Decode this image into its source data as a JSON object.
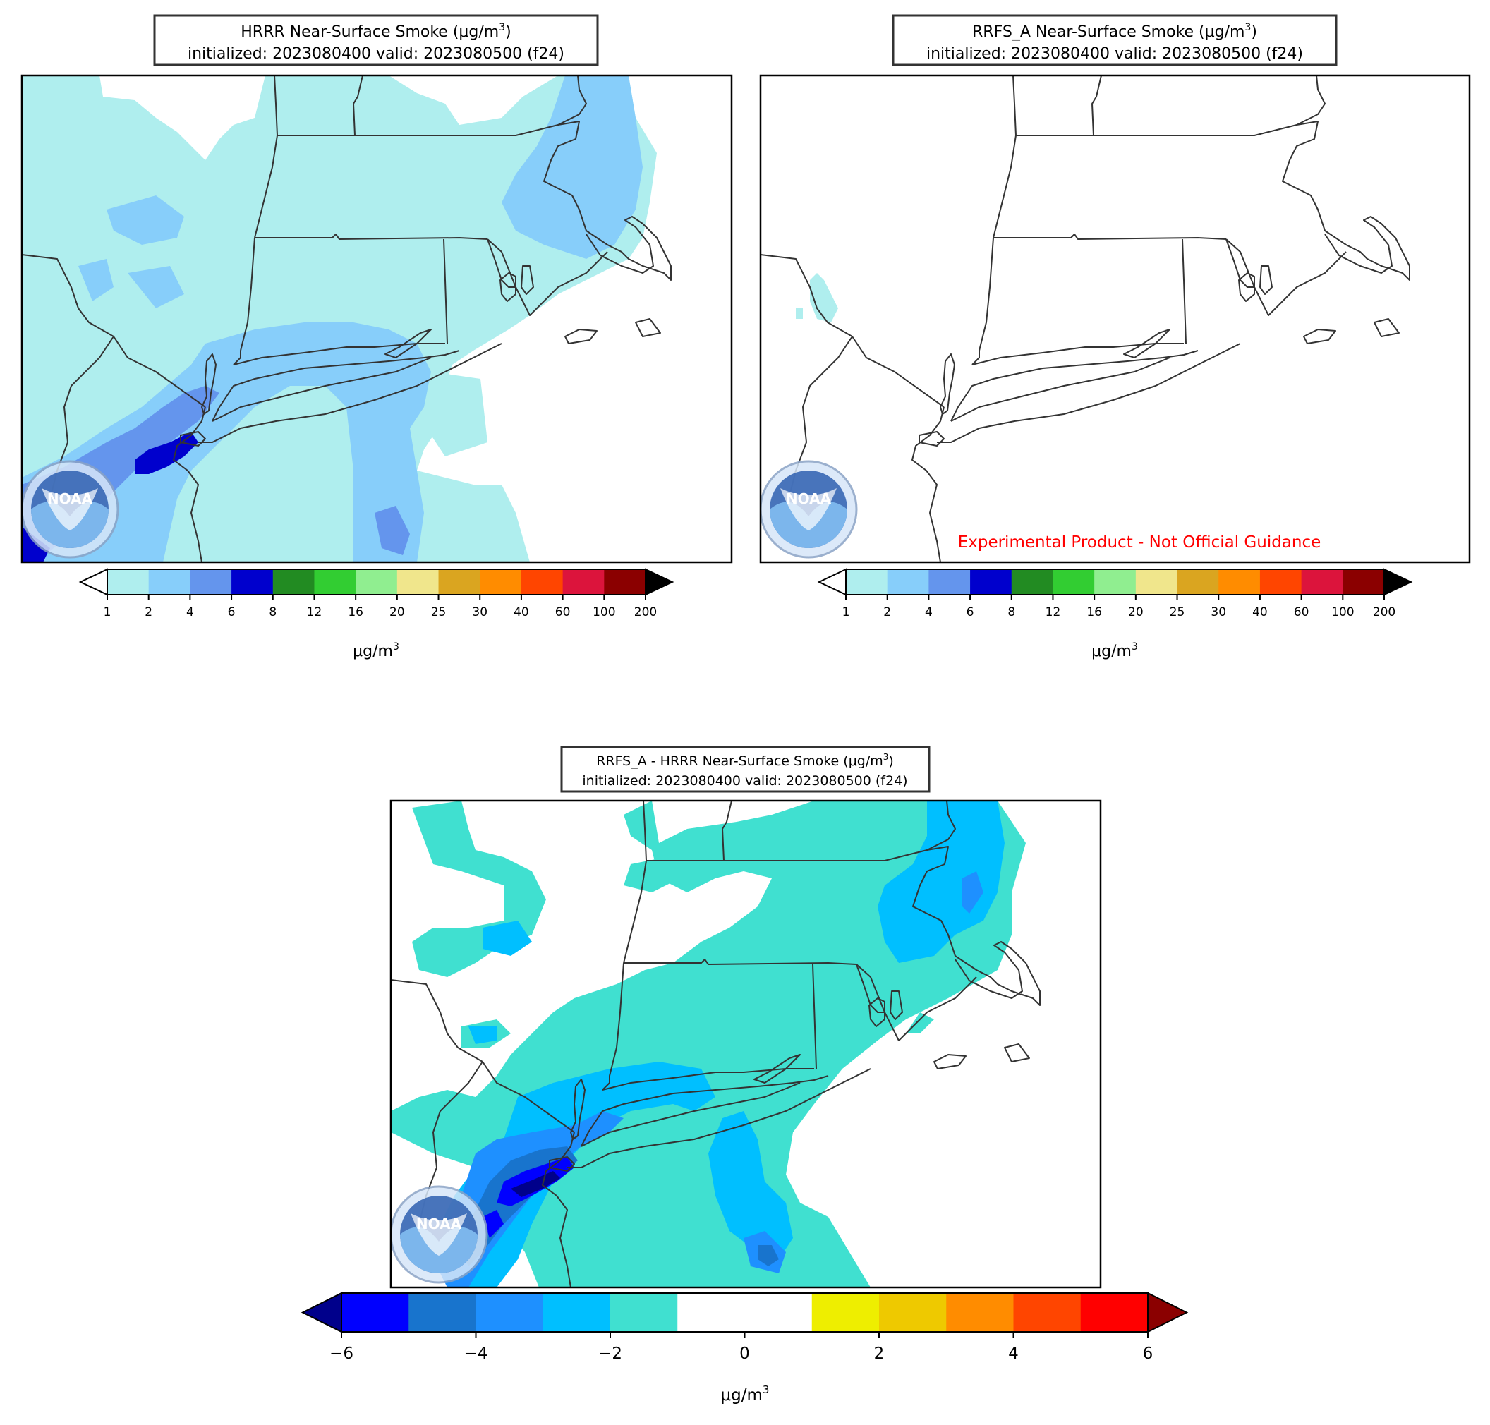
{
  "colors": {
    "smoke_scale": [
      "#afeeee",
      "#87cefa",
      "#6495ed",
      "#0000cd",
      "#228b22",
      "#32cd32",
      "#90ee90",
      "#f0e68c",
      "#daa520",
      "#ff8c00",
      "#ff4500",
      "#dc143c",
      "#8b0000"
    ],
    "smoke_over": "#000000",
    "smoke_under": "#ffffff",
    "diff_scale": [
      "#0000ff",
      "#1874cd",
      "#1e90ff",
      "#00bfff",
      "#40e0d0",
      "#ffffff",
      "#ffffff",
      "#eeee00",
      "#eec900",
      "#ff8c00",
      "#ff4500",
      "#ff0000"
    ],
    "diff_under": "#00008b",
    "diff_over": "#8b0000",
    "map_lines": "#333333",
    "warning_text": "#ff0000"
  },
  "panels": {
    "hrrr": {
      "title_line1": "HRRR Near-Surface Smoke (μg/m",
      "title_sup": "3",
      "title_close": ")",
      "title_line2": "initialized: 2023080400 valid: 2023080500 (f24)",
      "logo_text": "NOAA"
    },
    "rrfs": {
      "title_line1": "RRFS_A Near-Surface Smoke (μg/m",
      "title_sup": "3",
      "title_close": ")",
      "title_line2": "initialized: 2023080400 valid: 2023080500 (f24)",
      "logo_text": "NOAA",
      "warning": "Experimental Product - Not Official Guidance"
    },
    "diff": {
      "title_line1": "RRFS_A - HRRR Near-Surface Smoke (μg/m",
      "title_sup": "3",
      "title_close": ")",
      "title_line2": "initialized: 2023080400 valid: 2023080500 (f24)",
      "logo_text": "NOAA"
    }
  },
  "colorbars": {
    "smoke": {
      "ticks": [
        "1",
        "2",
        "4",
        "6",
        "8",
        "12",
        "16",
        "20",
        "25",
        "30",
        "40",
        "60",
        "100",
        "200"
      ],
      "unit": "μg/m",
      "unit_sup": "3"
    },
    "diff": {
      "ticks": [
        "−6",
        "−4",
        "−2",
        "0",
        "2",
        "4",
        "6"
      ],
      "unit": "μg/m",
      "unit_sup": "3"
    }
  }
}
